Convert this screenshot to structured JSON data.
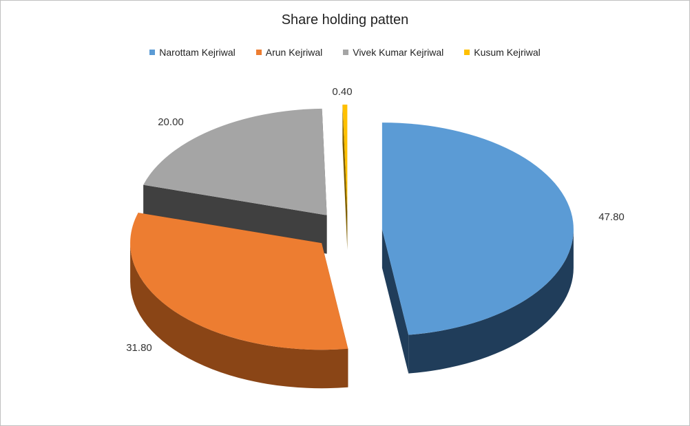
{
  "chart_data": {
    "type": "pie",
    "title": "Share holding patten",
    "legend_position": "top",
    "slices": [
      {
        "name": "Narottam Kejriwal",
        "value": 47.8,
        "label": "47.80",
        "color": "#5B9BD5",
        "side_color": "#203d5a"
      },
      {
        "name": "Arun Kejriwal",
        "value": 31.8,
        "label": "31.80",
        "color": "#ED7D31",
        "side_color": "#8a4516"
      },
      {
        "name": "Vivek Kumar Kejriwal",
        "value": 20.0,
        "label": "20.00",
        "color": "#A5A5A5",
        "side_color": "#404040"
      },
      {
        "name": "Kusum Kejriwal",
        "value": 0.4,
        "label": "0.40",
        "color": "#FFC000",
        "side_color": "#806000"
      }
    ]
  }
}
